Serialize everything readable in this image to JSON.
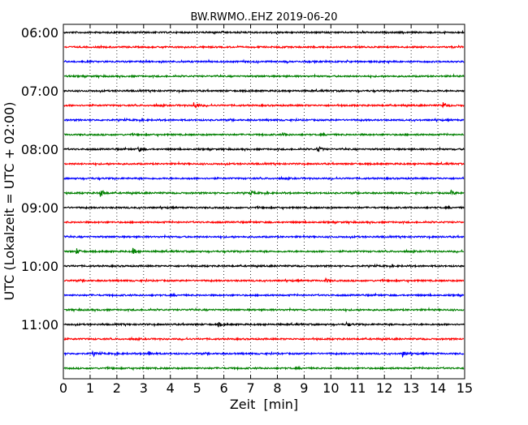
{
  "chart_data": {
    "type": "line",
    "title": "BW.RWMO..EHZ 2019-06-20",
    "xlabel": "Zeit  [min]",
    "ylabel": "UTC (Lokalzeit = UTC + 02:00)",
    "xlim": [
      0,
      15
    ],
    "x_ticks": [
      "0",
      "1",
      "2",
      "3",
      "4",
      "5",
      "6",
      "7",
      "8",
      "9",
      "10",
      "11",
      "12",
      "13",
      "14",
      "15"
    ],
    "y_tick_labels": [
      "06:00",
      "07:00",
      "08:00",
      "09:00",
      "10:00",
      "11:00"
    ],
    "trace_start_times": [
      "06:00",
      "06:15",
      "06:30",
      "06:45",
      "07:00",
      "07:15",
      "07:30",
      "07:45",
      "08:00",
      "08:15",
      "08:30",
      "08:45",
      "09:00",
      "09:15",
      "09:30",
      "09:45",
      "10:00",
      "10:15",
      "10:30",
      "10:45",
      "11:00",
      "11:15",
      "11:30",
      "11:45"
    ],
    "trace_colors": [
      "#000000",
      "#ff0000",
      "#0000ff",
      "#008000"
    ],
    "vertical_grid": "dotted",
    "events": [
      {
        "trace": 5,
        "minute": 4.9,
        "amp": 4
      },
      {
        "trace": 5,
        "minute": 14.2,
        "amp": 3.5
      },
      {
        "trace": 7,
        "minute": 8.2,
        "amp": 2
      },
      {
        "trace": 8,
        "minute": 2.8,
        "amp": 3
      },
      {
        "trace": 8,
        "minute": 9.5,
        "amp": 4.5
      },
      {
        "trace": 11,
        "minute": 1.4,
        "amp": 5
      },
      {
        "trace": 11,
        "minute": 7.0,
        "amp": 2.5
      },
      {
        "trace": 11,
        "minute": 14.5,
        "amp": 2.5
      },
      {
        "trace": 15,
        "minute": 0.5,
        "amp": 3
      },
      {
        "trace": 15,
        "minute": 2.6,
        "amp": 3
      },
      {
        "trace": 17,
        "minute": 9.8,
        "amp": 2
      },
      {
        "trace": 20,
        "minute": 5.8,
        "amp": 2.5
      },
      {
        "trace": 20,
        "minute": 10.6,
        "amp": 2
      },
      {
        "trace": 21,
        "minute": 15.0,
        "amp": 3
      },
      {
        "trace": 22,
        "minute": 1.1,
        "amp": 2
      },
      {
        "trace": 22,
        "minute": 3.2,
        "amp": 2.5
      },
      {
        "trace": 22,
        "minute": 12.7,
        "amp": 3
      }
    ]
  }
}
